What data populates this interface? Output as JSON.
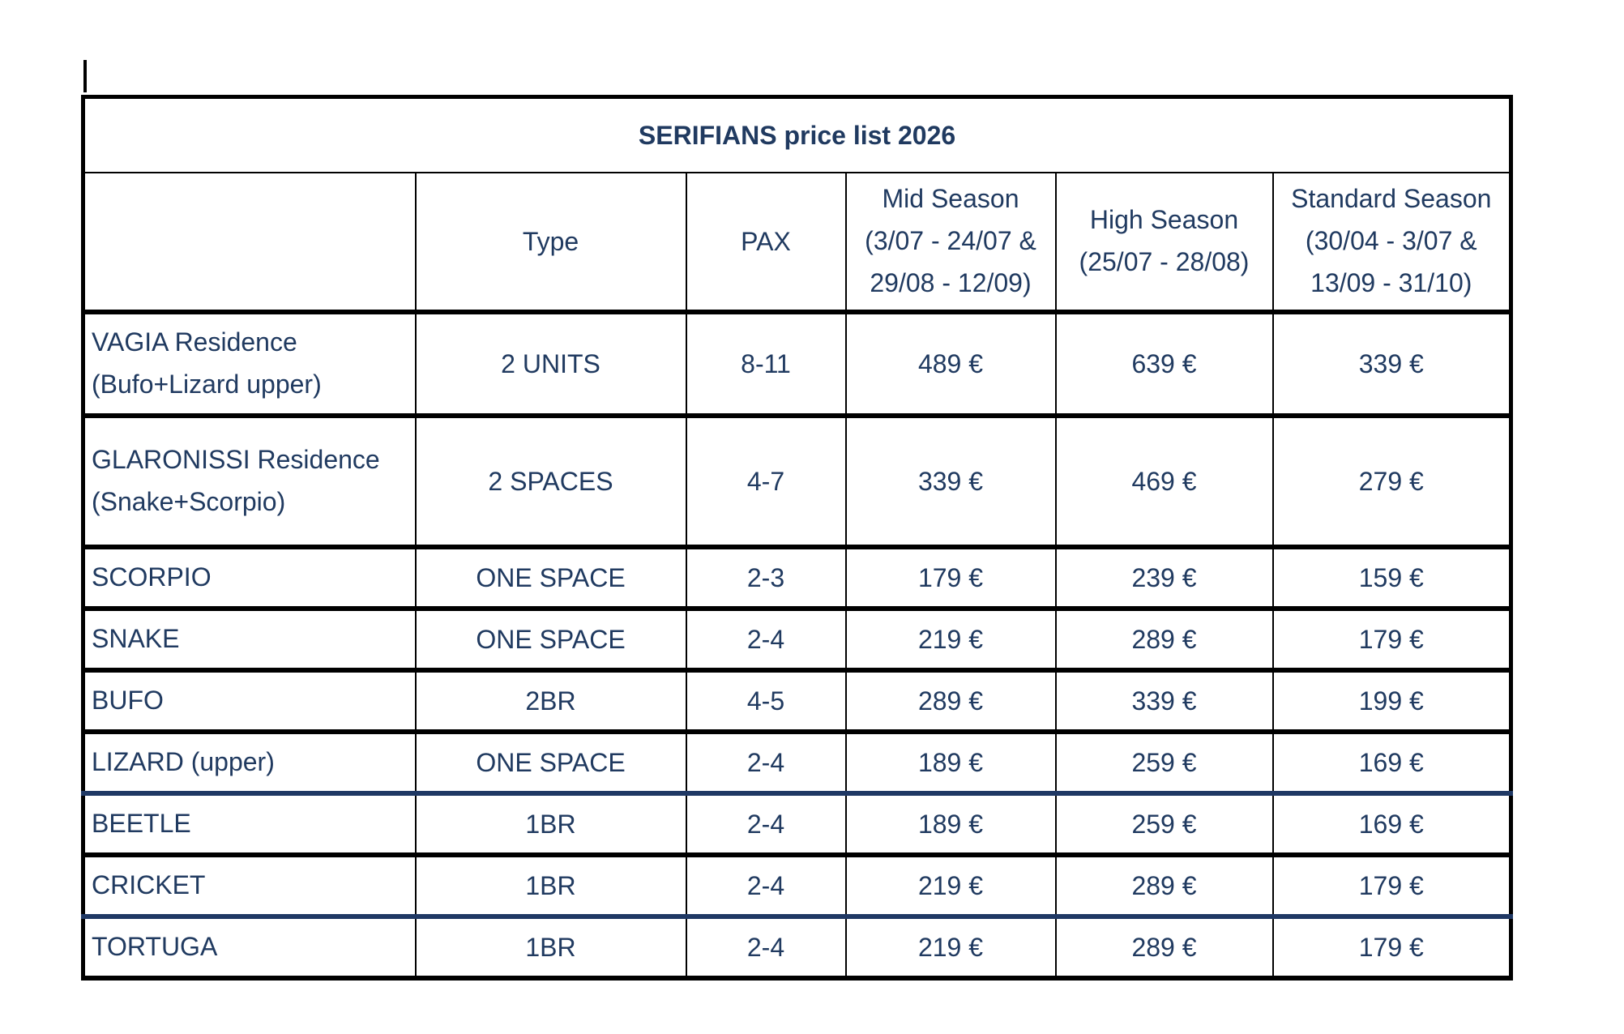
{
  "colors": {
    "text_navy": "#203a60",
    "border_black": "#000000",
    "divider_navy": "#1f3864"
  },
  "icons": {
    "text_caret": "|"
  },
  "table": {
    "title": "SERIFIANS price list 2026",
    "header": {
      "name": "",
      "type": "Type",
      "pax": "PAX",
      "mid_season": [
        "Mid Season",
        "(3/07 - 24/07 &",
        "29/08 - 12/09)"
      ],
      "high_season": [
        "High Season",
        "(25/07 - 28/08)"
      ],
      "standard_season": [
        "Standard Season",
        "(30/04 - 3/07 &",
        "13/09 - 31/10)"
      ]
    },
    "rows": [
      {
        "name": [
          "VAGIA Residence",
          "(Bufo+Lizard upper)"
        ],
        "type": "2 UNITS",
        "pax": "8-11",
        "mid_season": "489 €",
        "high_season": "639 €",
        "standard_season": "339 €",
        "size": "tall",
        "divider": "black"
      },
      {
        "name": [
          "GLARONISSI Residence",
          "(Snake+Scorpio)"
        ],
        "type": "2 SPACES",
        "pax": "4-7",
        "mid_season": "339 €",
        "high_season": "469 €",
        "standard_season": "279 €",
        "size": "taller",
        "divider": "black"
      },
      {
        "name": [
          "SCORPIO"
        ],
        "type": "ONE SPACE",
        "pax": "2-3",
        "mid_season": "179 €",
        "high_season": "239 €",
        "standard_season": "159 €",
        "divider": "black"
      },
      {
        "name": [
          "SNAKE"
        ],
        "type": "ONE SPACE",
        "pax": "2-4",
        "mid_season": "219 €",
        "high_season": "289 €",
        "standard_season": "179 €",
        "divider": "black"
      },
      {
        "name": [
          "BUFO"
        ],
        "type": "2BR",
        "pax": "4-5",
        "mid_season": "289 €",
        "high_season": "339 €",
        "standard_season": "199 €",
        "divider": "black"
      },
      {
        "name": [
          "LIZARD (upper)"
        ],
        "type": "ONE SPACE",
        "pax": "2-4",
        "mid_season": "189 €",
        "high_season": "259 €",
        "standard_season": "169 €",
        "divider": "navy"
      },
      {
        "name": [
          "BEETLE"
        ],
        "type": "1BR",
        "pax": "2-4",
        "mid_season": "189 €",
        "high_season": "259 €",
        "standard_season": "169 €",
        "divider": "black"
      },
      {
        "name": [
          "CRICKET"
        ],
        "type": "1BR",
        "pax": "2-4",
        "mid_season": "219 €",
        "high_season": "289 €",
        "standard_season": "179 €",
        "divider": "navy"
      },
      {
        "name": [
          "TORTUGA"
        ],
        "type": "1BR",
        "pax": "2-4",
        "mid_season": "219 €",
        "high_season": "289 €",
        "standard_season": "179 €",
        "divider": "black"
      }
    ]
  }
}
